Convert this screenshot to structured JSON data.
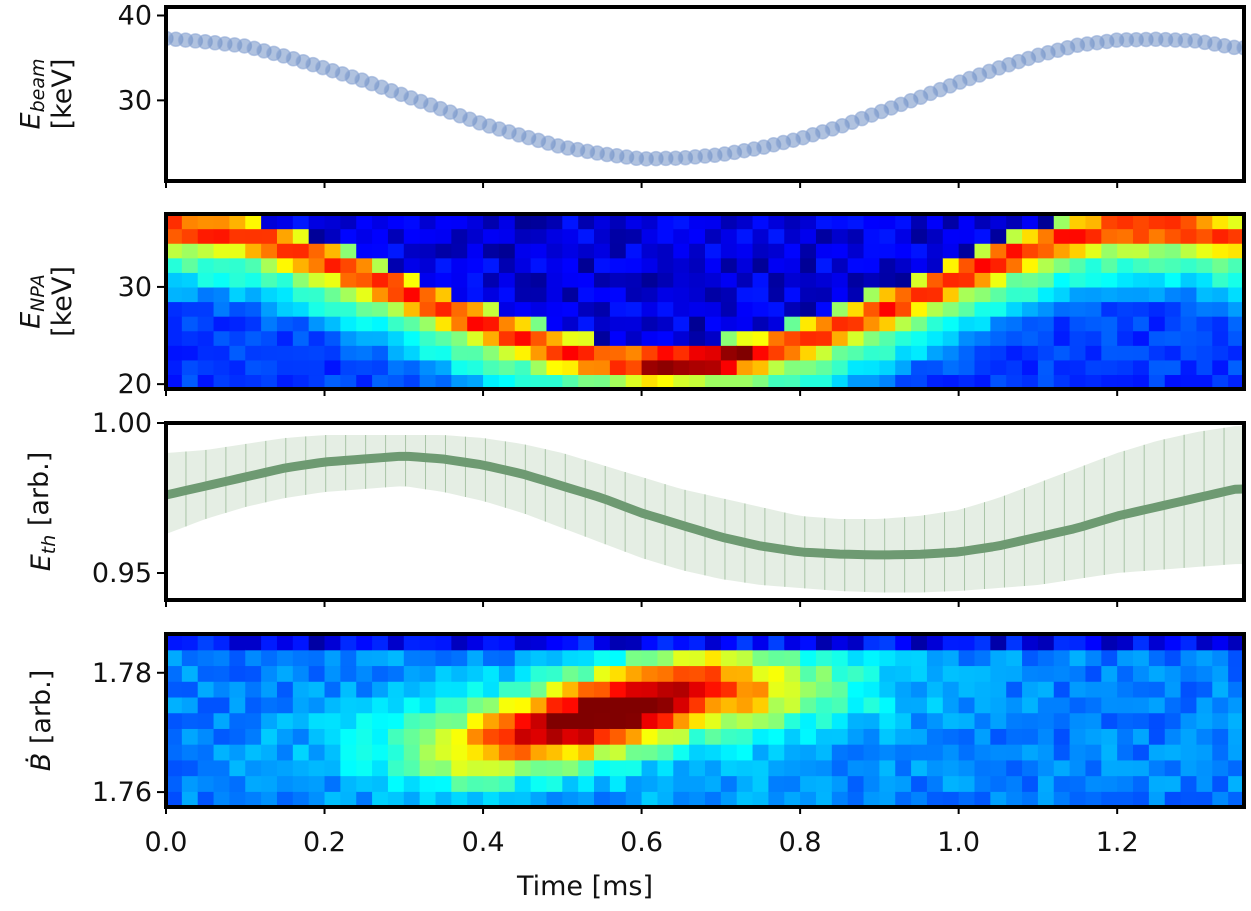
{
  "chart_data": [
    {
      "type": "scatter",
      "panel": "beam-energy",
      "ylabel_main": "E",
      "ylabel_sub": "beam",
      "ylabel_unit": "[keV]",
      "ylim": [
        20.5,
        41
      ],
      "yticks": [
        30,
        40
      ],
      "ytick_labels": [
        "30",
        "40"
      ],
      "xlim": [
        0,
        1.36
      ],
      "marker_color": "#6f8fc4",
      "series": [
        {
          "x": [
            0.0,
            0.05,
            0.1,
            0.15,
            0.2,
            0.25,
            0.3,
            0.35,
            0.4,
            0.45,
            0.5,
            0.55,
            0.6,
            0.65,
            0.7,
            0.75,
            0.8,
            0.85,
            0.9,
            0.95,
            1.0,
            1.05,
            1.1,
            1.15,
            1.2,
            1.25,
            1.3,
            1.35
          ],
          "values": [
            37.3,
            36.9,
            36.4,
            35.2,
            33.8,
            32.3,
            30.6,
            28.9,
            27.2,
            25.8,
            24.5,
            23.7,
            23.1,
            23.2,
            23.6,
            24.4,
            25.5,
            26.9,
            28.6,
            30.3,
            32.1,
            33.8,
            35.3,
            36.5,
            37.1,
            37.2,
            37.0,
            36.2
          ]
        }
      ]
    },
    {
      "type": "heatmap",
      "panel": "npa-spectrum",
      "ylabel_main": "E",
      "ylabel_sub": "NPA",
      "ylabel_unit": "[keV]",
      "ylim": [
        19.5,
        37.5
      ],
      "yticks": [
        20,
        30
      ],
      "ytick_labels": [
        "20",
        "30"
      ],
      "xlim": [
        0,
        1.36
      ],
      "colormap": "jet",
      "energy_bins": 12,
      "time_bins": 68
    },
    {
      "type": "line",
      "panel": "thermal-energy",
      "ylabel_main": "E",
      "ylabel_sub": "th",
      "ylabel_unit": "[arb.]",
      "ylim": [
        0.941,
        1.0
      ],
      "yticks": [
        0.95,
        1.0
      ],
      "ytick_labels": [
        "0.95",
        "1.00"
      ],
      "xlim": [
        0,
        1.36
      ],
      "line_color": "#6e9a72",
      "band_color": "#dfeadd",
      "series": [
        {
          "x": [
            0.0,
            0.05,
            0.1,
            0.15,
            0.2,
            0.25,
            0.3,
            0.35,
            0.4,
            0.45,
            0.5,
            0.55,
            0.6,
            0.65,
            0.7,
            0.75,
            0.8,
            0.85,
            0.9,
            0.95,
            1.0,
            1.05,
            1.1,
            1.15,
            1.2,
            1.25,
            1.3,
            1.35
          ],
          "values": [
            0.976,
            0.979,
            0.982,
            0.985,
            0.987,
            0.988,
            0.989,
            0.988,
            0.986,
            0.983,
            0.979,
            0.975,
            0.97,
            0.966,
            0.962,
            0.959,
            0.957,
            0.9563,
            0.956,
            0.9562,
            0.957,
            0.959,
            0.962,
            0.965,
            0.969,
            0.972,
            0.975,
            0.978
          ],
          "lower": [
            0.963,
            0.968,
            0.972,
            0.975,
            0.977,
            0.978,
            0.979,
            0.977,
            0.974,
            0.97,
            0.965,
            0.96,
            0.955,
            0.951,
            0.948,
            0.946,
            0.945,
            0.944,
            0.9435,
            0.9435,
            0.944,
            0.945,
            0.946,
            0.948,
            0.95,
            0.951,
            0.952,
            0.953
          ],
          "upper": [
            0.99,
            0.991,
            0.993,
            0.995,
            0.996,
            0.996,
            0.996,
            0.996,
            0.995,
            0.993,
            0.99,
            0.986,
            0.982,
            0.978,
            0.975,
            0.972,
            0.969,
            0.968,
            0.968,
            0.969,
            0.971,
            0.975,
            0.98,
            0.985,
            0.99,
            0.994,
            0.997,
            0.999
          ]
        }
      ]
    },
    {
      "type": "heatmap",
      "panel": "bdot-spectrum",
      "ylabel_main": "Ḃ",
      "ylabel_sub": "",
      "ylabel_unit": "[arb.]",
      "ylim": [
        1.7575,
        1.7865
      ],
      "yticks": [
        1.76,
        1.78
      ],
      "ytick_labels": [
        "1.76",
        "1.78"
      ],
      "xlim": [
        0,
        1.36
      ],
      "colormap": "jet",
      "energy_bins": 11,
      "time_bins": 68
    }
  ],
  "xaxis": {
    "label": "Time [ms]",
    "ticks": [
      0.0,
      0.2,
      0.4,
      0.6,
      0.8,
      1.0,
      1.2
    ],
    "tick_labels": [
      "0.0",
      "0.2",
      "0.4",
      "0.6",
      "0.8",
      "1.0",
      "1.2"
    ]
  }
}
